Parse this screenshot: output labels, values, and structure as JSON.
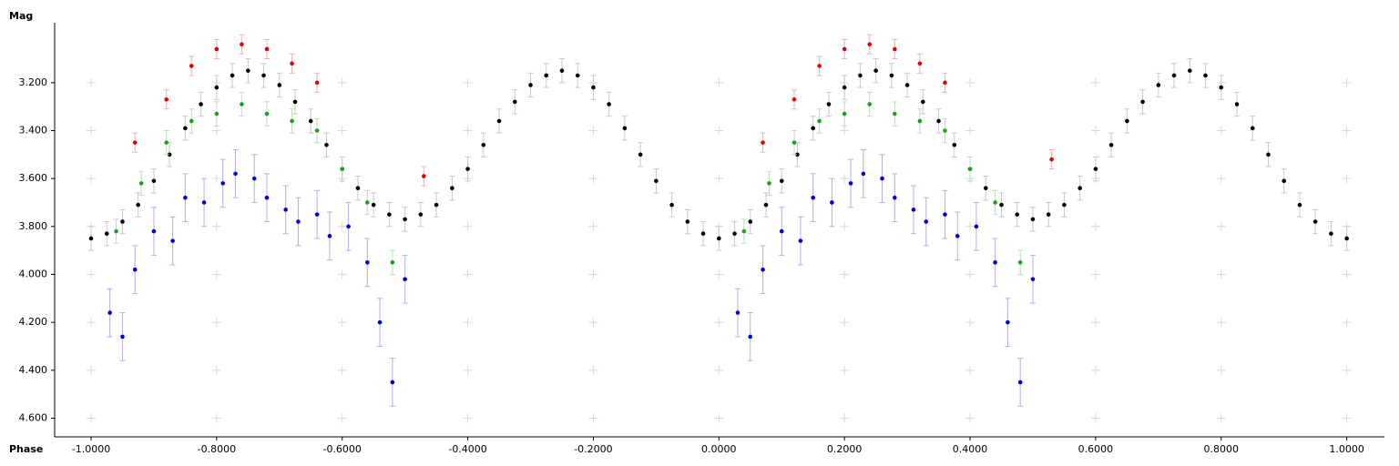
{
  "chart_data": {
    "type": "scatter",
    "y_label": "Mag",
    "x_label": "Phase",
    "xlim": [
      -1.058,
      1.06
    ],
    "ylim": [
      2.95,
      4.64
    ],
    "y_inverted": true,
    "grid": true,
    "xticks": [
      {
        "value": -1,
        "label": "-1.0000"
      },
      {
        "value": -0.8,
        "label": "-0.8000"
      },
      {
        "value": -0.6,
        "label": "-0.6000"
      },
      {
        "value": -0.4,
        "label": "-0.4000"
      },
      {
        "value": -0.2,
        "label": "-0.2000"
      },
      {
        "value": 0,
        "label": "0.0000"
      },
      {
        "value": 0.2,
        "label": "0.2000"
      },
      {
        "value": 0.4,
        "label": "0.4000"
      },
      {
        "value": 0.6,
        "label": "0.6000"
      },
      {
        "value": 0.8,
        "label": "0.8000"
      },
      {
        "value": 1,
        "label": "1.0000"
      }
    ],
    "yticks": [
      {
        "value": 3.2,
        "label": "3.200"
      },
      {
        "value": 3.4,
        "label": "3.400"
      },
      {
        "value": 3.6,
        "label": "3.600"
      },
      {
        "value": 3.8,
        "label": "3.800"
      },
      {
        "value": 4.0,
        "label": "4.000"
      },
      {
        "value": 4.2,
        "label": "4.200"
      },
      {
        "value": 4.4,
        "label": "4.400"
      },
      {
        "value": 4.6,
        "label": "4.600"
      }
    ],
    "series": [
      {
        "color": "#000000",
        "error_color": "#c8c8c8",
        "error": 0.05,
        "x": [
          -1,
          -0.975,
          -0.95,
          -0.925,
          -0.9,
          -0.875,
          -0.85,
          -0.825,
          -0.8,
          -0.775,
          -0.75,
          -0.725,
          -0.7,
          -0.675,
          -0.65,
          -0.625,
          -0.6,
          -0.575,
          -0.55,
          -0.525,
          -0.5,
          -0.475,
          -0.45,
          -0.425,
          -0.4,
          -0.375,
          -0.35,
          -0.325,
          -0.3,
          -0.275,
          -0.25,
          -0.225,
          -0.2,
          -0.175,
          -0.15,
          -0.125,
          -0.1,
          -0.075,
          -0.05,
          -0.025,
          0,
          0.025,
          0.05,
          0.075,
          0.1,
          0.125,
          0.15,
          0.175,
          0.2,
          0.225,
          0.25,
          0.275,
          0.3,
          0.325,
          0.35,
          0.375,
          0.4,
          0.425,
          0.45,
          0.475,
          0.5,
          0.525,
          0.55,
          0.575,
          0.6,
          0.625,
          0.65,
          0.675,
          0.7,
          0.725,
          0.75,
          0.775,
          0.8,
          0.825,
          0.85,
          0.875,
          0.9,
          0.925,
          0.95,
          0.975,
          1
        ],
        "values": [
          3.85,
          3.83,
          3.78,
          3.71,
          3.61,
          3.5,
          3.39,
          3.29,
          3.22,
          3.17,
          3.15,
          3.17,
          3.21,
          3.28,
          3.36,
          3.46,
          3.56,
          3.64,
          3.71,
          3.75,
          3.77,
          3.75,
          3.71,
          3.64,
          3.56,
          3.46,
          3.36,
          3.28,
          3.21,
          3.17,
          3.15,
          3.17,
          3.22,
          3.29,
          3.39,
          3.5,
          3.61,
          3.71,
          3.78,
          3.83,
          3.85,
          3.83,
          3.78,
          3.71,
          3.61,
          3.5,
          3.39,
          3.29,
          3.22,
          3.17,
          3.15,
          3.17,
          3.21,
          3.28,
          3.36,
          3.46,
          3.56,
          3.64,
          3.71,
          3.75,
          3.77,
          3.75,
          3.71,
          3.64,
          3.56,
          3.46,
          3.36,
          3.28,
          3.21,
          3.17,
          3.15,
          3.17,
          3.22,
          3.29,
          3.39,
          3.5,
          3.61,
          3.71,
          3.78,
          3.83,
          3.85
        ]
      },
      {
        "color": "#e00000",
        "error_color": "#f0b0b0",
        "error": 0.04,
        "x": [
          -0.93,
          -0.88,
          -0.84,
          -0.8,
          -0.76,
          -0.72,
          -0.68,
          -0.64,
          -0.47,
          0.07,
          0.12,
          0.16,
          0.2,
          0.24,
          0.28,
          0.32,
          0.36,
          0.53
        ],
        "values": [
          3.45,
          3.27,
          3.13,
          3.06,
          3.04,
          3.06,
          3.12,
          3.2,
          3.59,
          3.45,
          3.27,
          3.13,
          3.06,
          3.04,
          3.06,
          3.12,
          3.2,
          3.52
        ]
      },
      {
        "color": "#1ea01e",
        "error_color": "#b8e0b8",
        "error": 0.05,
        "x": [
          -0.96,
          -0.92,
          -0.88,
          -0.84,
          -0.8,
          -0.76,
          -0.72,
          -0.68,
          -0.64,
          -0.6,
          -0.56,
          -0.52,
          0.04,
          0.08,
          0.12,
          0.16,
          0.2,
          0.24,
          0.28,
          0.32,
          0.36,
          0.4,
          0.44,
          0.48
        ],
        "values": [
          3.82,
          3.62,
          3.45,
          3.36,
          3.33,
          3.29,
          3.33,
          3.36,
          3.4,
          3.56,
          3.7,
          3.95,
          3.82,
          3.62,
          3.45,
          3.36,
          3.33,
          3.29,
          3.33,
          3.36,
          3.4,
          3.56,
          3.7,
          3.95
        ]
      },
      {
        "color": "#0000c8",
        "error_color": "#b0b0e8",
        "error": 0.1,
        "x": [
          -0.97,
          -0.95,
          -0.93,
          -0.9,
          -0.87,
          -0.85,
          -0.82,
          -0.79,
          -0.77,
          -0.74,
          -0.72,
          -0.69,
          -0.67,
          -0.64,
          -0.62,
          -0.59,
          -0.56,
          -0.54,
          -0.52,
          -0.5,
          0.03,
          0.05,
          0.07,
          0.1,
          0.13,
          0.15,
          0.18,
          0.21,
          0.23,
          0.26,
          0.28,
          0.31,
          0.33,
          0.36,
          0.38,
          0.41,
          0.44,
          0.46,
          0.48,
          0.5
        ],
        "values": [
          4.16,
          4.26,
          3.98,
          3.82,
          3.86,
          3.68,
          3.7,
          3.62,
          3.58,
          3.6,
          3.68,
          3.73,
          3.78,
          3.75,
          3.84,
          3.8,
          3.95,
          4.2,
          4.45,
          4.02,
          4.16,
          4.26,
          3.98,
          3.82,
          3.86,
          3.68,
          3.7,
          3.62,
          3.58,
          3.6,
          3.68,
          3.73,
          3.78,
          3.75,
          3.84,
          3.8,
          3.95,
          4.2,
          4.45,
          4.02
        ]
      }
    ]
  }
}
